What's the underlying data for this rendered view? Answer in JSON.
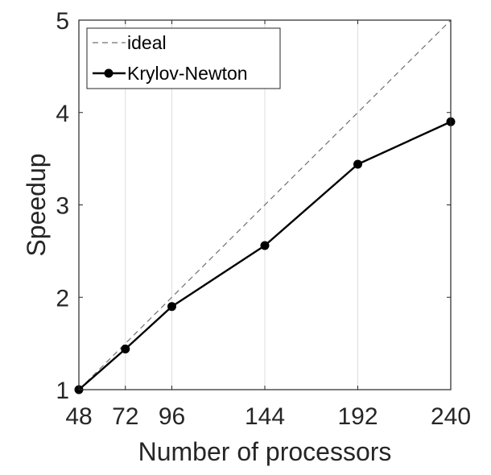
{
  "chart_data": {
    "type": "line",
    "x": [
      48,
      72,
      96,
      144,
      192,
      240
    ],
    "series": [
      {
        "name": "ideal",
        "x": [
          48,
          240
        ],
        "values": [
          1,
          5
        ],
        "style": "dashed",
        "color": "#707070",
        "marker": "none"
      },
      {
        "name": "Krylov-Newton",
        "x": [
          48,
          72,
          96,
          144,
          192,
          240
        ],
        "values": [
          1.0,
          1.44,
          1.9,
          2.56,
          3.44,
          3.9
        ],
        "style": "solid",
        "color": "#000000",
        "marker": "circle"
      }
    ],
    "xlabel": "Number of processors",
    "ylabel": "Speedup",
    "xlim": [
      48,
      240
    ],
    "ylim": [
      1,
      5
    ],
    "xticks": [
      48,
      72,
      96,
      144,
      192,
      240
    ],
    "yticks": [
      1,
      2,
      3,
      4,
      5
    ],
    "xgrid": true,
    "ygrid": false,
    "legend": {
      "position": "top-left",
      "entries": [
        "ideal",
        "Krylov-Newton"
      ]
    }
  }
}
